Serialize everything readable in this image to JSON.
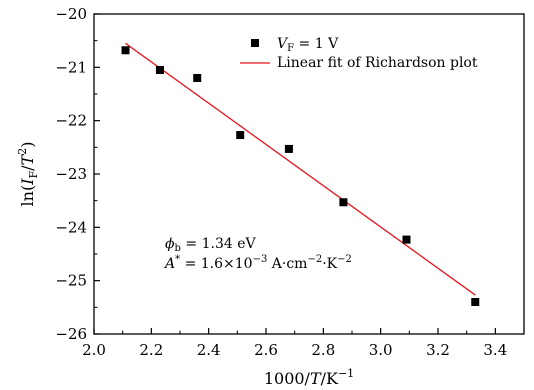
{
  "chart_data": {
    "type": "scatter",
    "xlabel": "1000/T/K^-1",
    "ylabel": "ln(I_F/T^2)",
    "xlim": [
      2.0,
      3.5
    ],
    "ylim": [
      -26,
      -20
    ],
    "x_ticks": [
      2.0,
      2.2,
      2.4,
      2.6,
      2.8,
      3.0,
      3.2,
      3.4
    ],
    "y_ticks": [
      -20,
      -21,
      -22,
      -23,
      -24,
      -25,
      -26
    ],
    "grid": false,
    "legend_position": "top-right",
    "series": [
      {
        "name": "V_F = 1 V",
        "kind": "scatter",
        "marker": "square",
        "color": "#000000",
        "x": [
          2.11,
          2.23,
          2.36,
          2.51,
          2.68,
          2.87,
          3.09,
          3.33
        ],
        "y": [
          -20.68,
          -21.05,
          -21.2,
          -22.27,
          -22.53,
          -23.53,
          -24.23,
          -25.4
        ]
      },
      {
        "name": "Linear fit of Richardson plot",
        "kind": "line",
        "color": "#e8151b",
        "x": [
          2.11,
          3.33
        ],
        "y": [
          -20.55,
          -25.27
        ]
      }
    ],
    "annotations": [
      {
        "id": "phi",
        "text": "ϕb = 1.34 eV"
      },
      {
        "id": "astar",
        "text": "A* = 1.6×10^-3 A·cm^-2·K^-2"
      }
    ]
  },
  "labels": {
    "x_axis": {
      "num": "1000/",
      "var": "T",
      "unit": "/K",
      "exp": "−1"
    },
    "y_axis": {
      "pre": "ln(",
      "var": "I",
      "sub": "F",
      "mid": "/",
      "var2": "T",
      "exp": "2",
      "post": ")"
    },
    "legend_scatter": {
      "var": "V",
      "sub": "F",
      "rest": " = 1 V"
    },
    "legend_line": "Linear fit of Richardson plot",
    "anno_phi": {
      "var": "ϕ",
      "sub": "b",
      "rest": " = 1.34 eV"
    },
    "anno_astar": {
      "var": "A",
      "sup": "*",
      "rest": " = 1.6×10",
      "exp1": "−3",
      "unit1": " A·cm",
      "exp2": "−2",
      "unit2": "·K",
      "exp3": "−2"
    }
  }
}
